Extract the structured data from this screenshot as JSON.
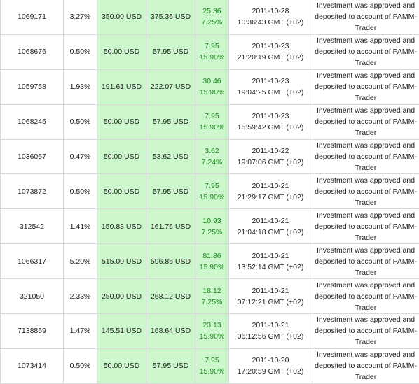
{
  "table": {
    "rows": [
      [
        "1069171",
        "3.27%",
        "350.00 USD",
        "375.36 USD",
        "25.36",
        "7.25%",
        "2011-10-28",
        "10:36:43 GMT (+02)",
        "Investment was approved and deposited to account of PAMM-Trader"
      ],
      [
        "1068676",
        "0.50%",
        "50.00 USD",
        "57.95 USD",
        "7.95",
        "15.90%",
        "2011-10-23",
        "21:20:19 GMT (+02)",
        "Investment was approved and deposited to account of PAMM-Trader"
      ],
      [
        "1059758",
        "1.93%",
        "191.61 USD",
        "222.07 USD",
        "30.46",
        "15.90%",
        "2011-10-23",
        "19:04:25 GMT (+02)",
        "Investment was approved and deposited to account of PAMM-Trader"
      ],
      [
        "1068245",
        "0.50%",
        "50.00 USD",
        "57.95 USD",
        "7.95",
        "15.90%",
        "2011-10-23",
        "15:59:42 GMT (+02)",
        "Investment was approved and deposited to account of PAMM-Trader"
      ],
      [
        "1036067",
        "0.47%",
        "50.00 USD",
        "53.62 USD",
        "3.62",
        "7.24%",
        "2011-10-22",
        "19:07:06 GMT (+02)",
        "Investment was approved and deposited to account of PAMM-Trader"
      ],
      [
        "1073872",
        "0.50%",
        "50.00 USD",
        "57.95 USD",
        "7.95",
        "15.90%",
        "2011-10-21",
        "21:29:17 GMT (+02)",
        "Investment was approved and deposited to account of PAMM-Trader"
      ],
      [
        "312542",
        "1.41%",
        "150.83 USD",
        "161.76 USD",
        "10.93",
        "7.25%",
        "2011-10-21",
        "21:04:18 GMT (+02)",
        "Investment was approved and deposited to account of PAMM-Trader"
      ],
      [
        "1066317",
        "5.20%",
        "515.00 USD",
        "596.86 USD",
        "81.86",
        "15.90%",
        "2011-10-21",
        "13:52:14 GMT (+02)",
        "Investment was approved and deposited to account of PAMM-Trader"
      ],
      [
        "321050",
        "2.33%",
        "250.00 USD",
        "268.12 USD",
        "18.12",
        "7.25%",
        "2011-10-21",
        "07:12:21 GMT (+02)",
        "Investment was approved and deposited to account of PAMM-Trader"
      ],
      [
        "7138869",
        "1.47%",
        "145.51 USD",
        "168.64 USD",
        "23.13",
        "15.90%",
        "2011-10-21",
        "06:12:56 GMT (+02)",
        "Investment was approved and deposited to account of PAMM-Trader"
      ],
      [
        "1073414",
        "0.50%",
        "50.00 USD",
        "57.95 USD",
        "7.95",
        "15.90%",
        "2011-10-20",
        "17:20:59 GMT (+02)",
        "Investment was approved and deposited to account of PAMM-Trader"
      ]
    ]
  }
}
